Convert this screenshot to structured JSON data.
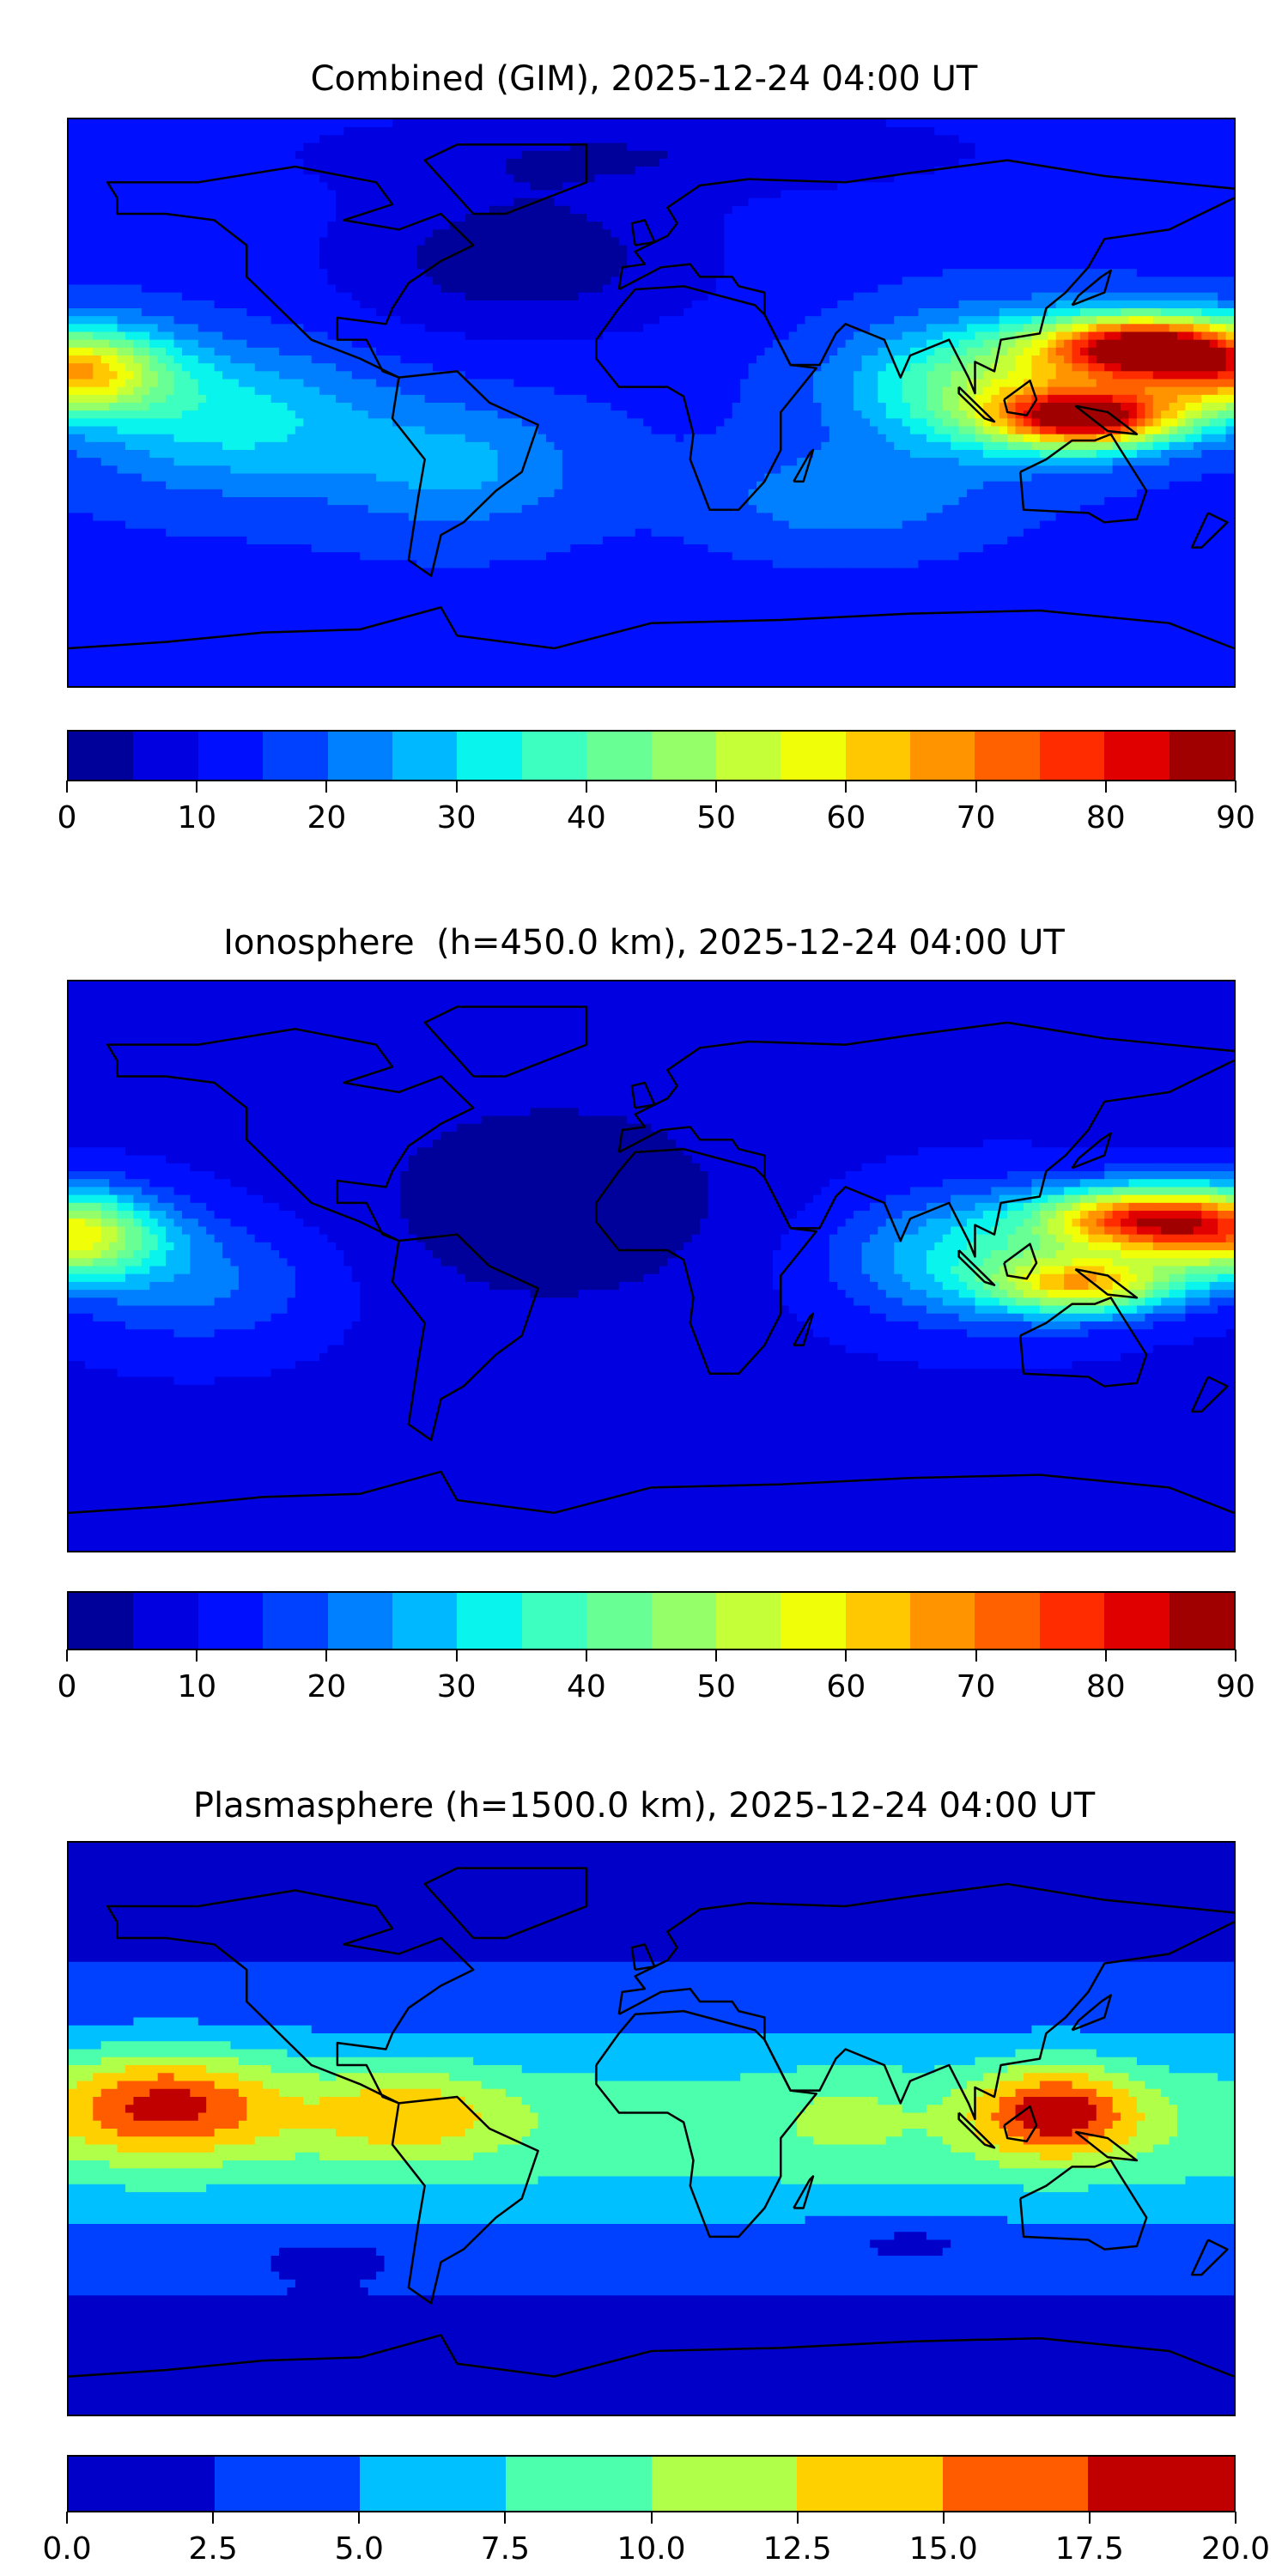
{
  "chart_data": [
    {
      "type": "heatmap",
      "title": "Combined (GIM), 2025-12-24 04:00 UT",
      "projection": "plate-carree",
      "xlim": [
        -180,
        180
      ],
      "ylim": [
        -90,
        90
      ],
      "colorbar": {
        "levels": [
          0,
          5,
          10,
          15,
          20,
          25,
          30,
          35,
          40,
          45,
          50,
          55,
          60,
          65,
          70,
          75,
          80,
          85,
          90
        ],
        "tick_labels": [
          "0",
          "10",
          "20",
          "30",
          "40",
          "50",
          "60",
          "70",
          "80",
          "90"
        ],
        "colors": [
          "#00009b",
          "#0000e0",
          "#0010ff",
          "#0040ff",
          "#0080ff",
          "#00b8ff",
          "#08f4ec",
          "#3cffc0",
          "#68ff94",
          "#94ff68",
          "#c4ff38",
          "#f0ff08",
          "#ffc800",
          "#ff9400",
          "#ff6000",
          "#ff2c00",
          "#e00000",
          "#a00000"
        ]
      },
      "field": {
        "base": 14,
        "features": [
          {
            "lon": 150,
            "lat": 18,
            "value": 62,
            "slon": 30,
            "slat": 10
          },
          {
            "lon": 135,
            "lat": -5,
            "value": 62,
            "slon": 28,
            "slat": 9
          },
          {
            "lon": 110,
            "lat": 5,
            "value": 35,
            "slon": 45,
            "slat": 20
          },
          {
            "lon": -180,
            "lat": 10,
            "value": 50,
            "slon": 30,
            "slat": 14
          },
          {
            "lon": 180,
            "lat": 10,
            "value": 50,
            "slon": 30,
            "slat": 14
          },
          {
            "lon": -130,
            "lat": -5,
            "value": 18,
            "slon": 45,
            "slat": 22
          },
          {
            "lon": -60,
            "lat": -20,
            "value": 12,
            "slon": 40,
            "slat": 20
          },
          {
            "lon": 60,
            "lat": -30,
            "value": 10,
            "slon": 40,
            "slat": 15
          },
          {
            "lon": -40,
            "lat": 45,
            "value": -12,
            "slon": 60,
            "slat": 25
          },
          {
            "lon": 0,
            "lat": 80,
            "value": -8,
            "slon": 120,
            "slat": 15
          }
        ]
      }
    },
    {
      "type": "heatmap",
      "title": "Ionosphere  (h=450.0 km), 2025-12-24 04:00 UT",
      "projection": "plate-carree",
      "xlim": [
        -180,
        180
      ],
      "ylim": [
        -90,
        90
      ],
      "colorbar": {
        "levels": [
          0,
          5,
          10,
          15,
          20,
          25,
          30,
          35,
          40,
          45,
          50,
          55,
          60,
          65,
          70,
          75,
          80,
          85,
          90
        ],
        "tick_labels": [
          "0",
          "10",
          "20",
          "30",
          "40",
          "50",
          "60",
          "70",
          "80",
          "90"
        ],
        "colors": [
          "#00009b",
          "#0000e0",
          "#0010ff",
          "#0040ff",
          "#0080ff",
          "#00b8ff",
          "#08f4ec",
          "#3cffc0",
          "#68ff94",
          "#94ff68",
          "#c4ff38",
          "#f0ff08",
          "#ffc800",
          "#ff9400",
          "#ff6000",
          "#ff2c00",
          "#e00000",
          "#a00000"
        ]
      },
      "field": {
        "base": 9,
        "features": [
          {
            "lon": 150,
            "lat": 15,
            "value": 55,
            "slon": 30,
            "slat": 10
          },
          {
            "lon": 135,
            "lat": -6,
            "value": 42,
            "slon": 28,
            "slat": 9
          },
          {
            "lon": 105,
            "lat": 3,
            "value": 25,
            "slon": 45,
            "slat": 20
          },
          {
            "lon": -180,
            "lat": 10,
            "value": 48,
            "slon": 28,
            "slat": 14
          },
          {
            "lon": 180,
            "lat": 10,
            "value": 48,
            "slon": 28,
            "slat": 14
          },
          {
            "lon": -140,
            "lat": -5,
            "value": 12,
            "slon": 40,
            "slat": 20
          },
          {
            "lon": -30,
            "lat": 20,
            "value": -8,
            "slon": 60,
            "slat": 35
          }
        ]
      }
    },
    {
      "type": "heatmap",
      "title": "Plasmasphere (h=1500.0 km), 2025-12-24 04:00 UT",
      "projection": "plate-carree",
      "xlim": [
        -180,
        180
      ],
      "ylim": [
        -90,
        90
      ],
      "colorbar": {
        "levels": [
          0,
          2.5,
          5,
          7.5,
          10,
          12.5,
          15,
          17.5,
          20
        ],
        "tick_labels": [
          "0.0",
          "2.5",
          "5.0",
          "7.5",
          "10.0",
          "12.5",
          "15.0",
          "17.5",
          "20.0"
        ],
        "colors": [
          "#0000c8",
          "#0040ff",
          "#00c0ff",
          "#4cffac",
          "#b0ff48",
          "#ffd000",
          "#ff5c00",
          "#c00000"
        ]
      },
      "field": {
        "base": 2,
        "band": {
          "value": 7,
          "slat": 32
        },
        "features": [
          {
            "lon": -150,
            "lat": 8,
            "value": 10,
            "slon": 35,
            "slat": 16
          },
          {
            "lon": -75,
            "lat": 5,
            "value": 6,
            "slon": 30,
            "slat": 14
          },
          {
            "lon": 125,
            "lat": 5,
            "value": 11,
            "slon": 25,
            "slat": 14
          },
          {
            "lon": 60,
            "lat": 5,
            "value": 2,
            "slon": 20,
            "slat": 15
          },
          {
            "lon": -100,
            "lat": -40,
            "value": -2,
            "slon": 20,
            "slat": 6
          },
          {
            "lon": 80,
            "lat": -35,
            "value": -2,
            "slon": 25,
            "slat": 6
          }
        ]
      }
    }
  ]
}
